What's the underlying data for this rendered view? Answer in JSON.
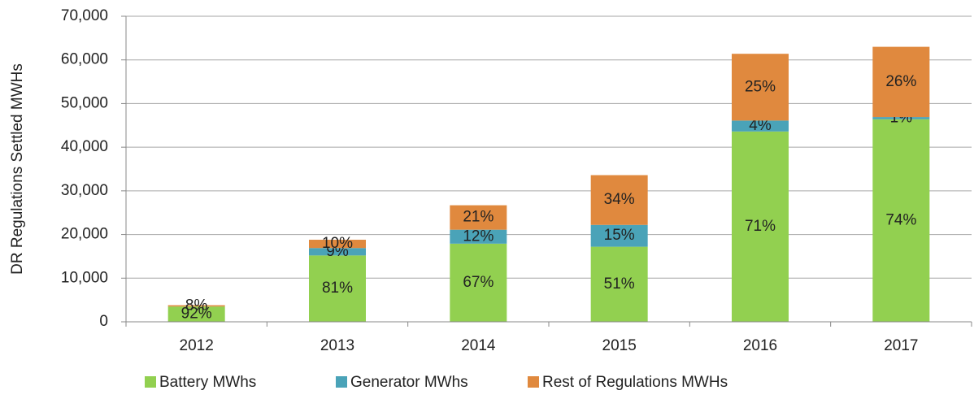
{
  "chart_data": {
    "type": "stacked_bar",
    "y_label": "DR Regulations Settled MWHs",
    "categories": [
      "2012",
      "2013",
      "2014",
      "2015",
      "2016",
      "2017"
    ],
    "series": [
      {
        "name": "Battery MWhs",
        "color": "#92d050",
        "values": [
          3500,
          15200,
          17900,
          17200,
          43600,
          46400
        ],
        "value_labels": [
          "92%",
          "81%",
          "67%",
          "51%",
          "71%",
          "74%"
        ]
      },
      {
        "name": "Generator MWhs",
        "color": "#4aa3b8",
        "values": [
          0,
          1700,
          3200,
          5000,
          2500,
          500
        ],
        "value_labels": [
          null,
          "9%",
          "12%",
          "15%",
          "4%",
          "1%"
        ]
      },
      {
        "name": "Rest of Regulations MWHs",
        "color": "#e0893e",
        "values": [
          300,
          1900,
          5600,
          11400,
          15300,
          16100
        ],
        "value_labels": [
          "8%",
          "10%",
          "21%",
          "34%",
          "25%",
          "26%"
        ]
      }
    ],
    "ylim": [
      0,
      70000
    ],
    "yticks": [
      0,
      {
        "value": 10000,
        "label": "10,000"
      },
      {
        "value": 20000,
        "label": "20,000"
      },
      {
        "value": 30000,
        "label": "30,000"
      },
      {
        "value": 40000,
        "label": "40,000"
      },
      {
        "value": 50000,
        "label": "50,000"
      },
      {
        "value": 60000,
        "label": "60,000"
      },
      {
        "value": 70000,
        "label": "70,000"
      }
    ],
    "grid": true,
    "legend": "bottom"
  }
}
